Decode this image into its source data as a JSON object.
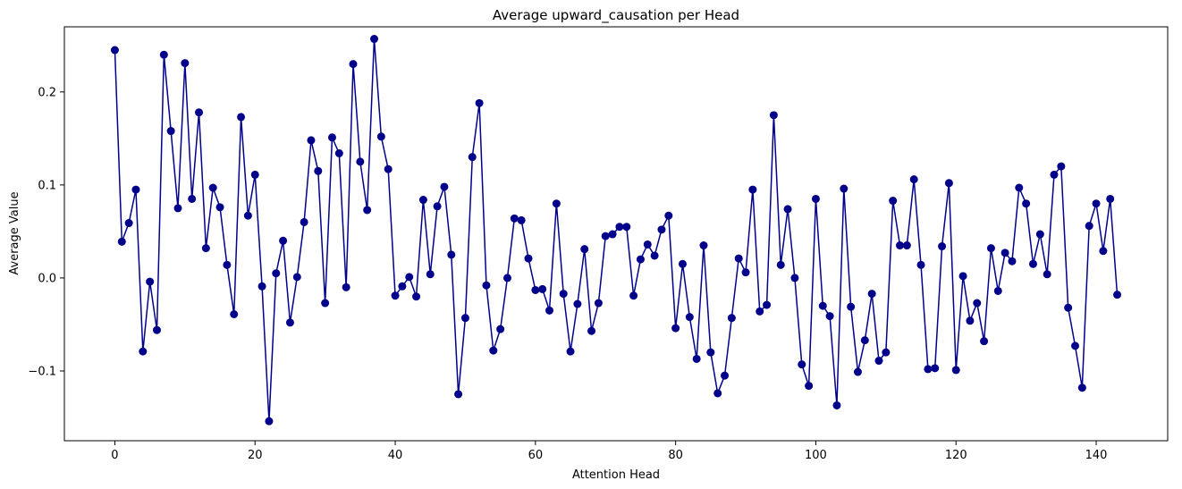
{
  "chart_data": {
    "type": "line",
    "title": "Average upward_causation per Head",
    "xlabel": "Attention Head",
    "ylabel": "Average Value",
    "xlim": [
      -7.2,
      150.2
    ],
    "ylim": [
      -0.175,
      0.27
    ],
    "xticks": [
      0,
      20,
      40,
      60,
      80,
      100,
      120,
      140
    ],
    "yticks": [
      -0.1,
      0.0,
      0.1,
      0.2
    ],
    "ytick_labels": [
      "−0.1",
      "0.0",
      "0.1",
      "0.2"
    ],
    "grid": false,
    "color": "#00008b",
    "marker": "circle",
    "series": [
      {
        "x": [
          0,
          1,
          2,
          3,
          4,
          5,
          6,
          7,
          8,
          9,
          10,
          11,
          12,
          13,
          14,
          15,
          16,
          17,
          18,
          19,
          20,
          21,
          22,
          23,
          24,
          25,
          26,
          27,
          28,
          29,
          30,
          31,
          32,
          33,
          34,
          35,
          36,
          37,
          38,
          39,
          40,
          41,
          42,
          43,
          44,
          45,
          46,
          47,
          48,
          49,
          50,
          51,
          52,
          53,
          54,
          55,
          56,
          57,
          58,
          59,
          60,
          61,
          62,
          63,
          64,
          65,
          66,
          67,
          68,
          69,
          70,
          71,
          72,
          73,
          74,
          75,
          76,
          77,
          78,
          79,
          80,
          81,
          82,
          83,
          84,
          85,
          86,
          87,
          88,
          89,
          90,
          91,
          92,
          93,
          94,
          95,
          96,
          97,
          98,
          99,
          100,
          101,
          102,
          103,
          104,
          105,
          106,
          107,
          108,
          109,
          110,
          111,
          112,
          113,
          114,
          115,
          116,
          117,
          118,
          119,
          120,
          121,
          122,
          123,
          124,
          125,
          126,
          127,
          128,
          129,
          130,
          131,
          132,
          133,
          134,
          135,
          136,
          137,
          138,
          139,
          140,
          141,
          142,
          143
        ],
        "values": [
          0.245,
          0.039,
          0.059,
          0.095,
          -0.079,
          -0.004,
          -0.056,
          0.24,
          0.158,
          0.075,
          0.231,
          0.085,
          0.178,
          0.032,
          0.097,
          0.076,
          0.014,
          -0.039,
          0.173,
          0.067,
          0.111,
          -0.009,
          -0.154,
          0.005,
          0.04,
          -0.048,
          0.001,
          0.06,
          0.148,
          0.115,
          -0.027,
          0.151,
          0.134,
          -0.01,
          0.23,
          0.125,
          0.073,
          0.257,
          0.152,
          0.117,
          -0.019,
          -0.009,
          0.001,
          -0.02,
          0.084,
          0.004,
          0.077,
          0.098,
          0.025,
          -0.125,
          -0.043,
          0.13,
          0.188,
          -0.008,
          -0.078,
          -0.055,
          0.0,
          0.064,
          0.062,
          0.021,
          -0.013,
          -0.012,
          -0.035,
          0.08,
          -0.017,
          -0.079,
          -0.028,
          0.031,
          -0.057,
          -0.027,
          0.045,
          0.047,
          0.055,
          0.055,
          -0.019,
          0.02,
          0.036,
          0.024,
          0.052,
          0.067,
          -0.054,
          0.015,
          -0.042,
          -0.087,
          0.035,
          -0.08,
          -0.124,
          -0.105,
          -0.043,
          0.021,
          0.006,
          0.095,
          -0.036,
          -0.029,
          0.175,
          0.014,
          0.074,
          0.0,
          -0.093,
          -0.116,
          0.085,
          -0.03,
          -0.041,
          -0.137,
          0.096,
          -0.031,
          -0.101,
          -0.067,
          -0.017,
          -0.089,
          -0.08,
          0.083,
          0.035,
          0.035,
          0.106,
          0.014,
          -0.098,
          -0.097,
          0.034,
          0.102,
          -0.099,
          0.002,
          -0.046,
          -0.027,
          -0.068,
          0.032,
          -0.014,
          0.027,
          0.018,
          0.097,
          0.08,
          0.015,
          0.047,
          0.004,
          0.111,
          0.12,
          -0.032,
          -0.073,
          -0.118,
          0.056,
          0.08,
          0.029,
          0.085,
          -0.018
        ]
      }
    ]
  }
}
